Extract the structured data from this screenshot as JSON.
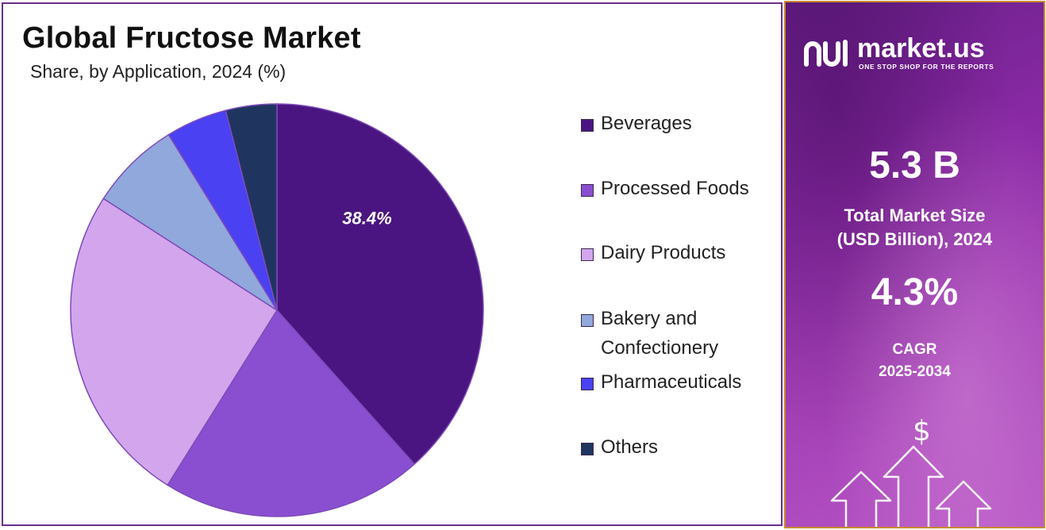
{
  "chart_data": {
    "type": "pie",
    "title": "Global Fructose Market",
    "subtitle": "Share, by Application, 2024 (%)",
    "slices": [
      {
        "label": "Beverages",
        "value": 38.4,
        "color": "#4a1580"
      },
      {
        "label": "Processed Foods",
        "value": 20.5,
        "color": "#8a4fd0"
      },
      {
        "label": "Dairy Products",
        "value": 25.2,
        "color": "#d2a5ec"
      },
      {
        "label": "Bakery and Confectionery",
        "value": 7.1,
        "color": "#91a8dc"
      },
      {
        "label": "Pharmaceuticals",
        "value": 4.8,
        "color": "#4a41f2"
      },
      {
        "label": "Others",
        "value": 4.0,
        "color": "#1f3560"
      }
    ],
    "data_label": "38.4%",
    "legend_position": "right"
  },
  "brand": {
    "name": "market.us",
    "tagline": "ONE STOP SHOP FOR THE REPORTS"
  },
  "stats": {
    "market_size_value": "5.3 B",
    "market_size_label_1": "Total Market Size",
    "market_size_label_2": "(USD Billion), 2024",
    "cagr_value": "4.3%",
    "cagr_label": "CAGR",
    "cagr_period": "2025-2034"
  },
  "icons": {
    "logo": "market-us-logo-icon",
    "dollar": "dollar-icon",
    "arrows": "growth-arrows-icon"
  }
}
